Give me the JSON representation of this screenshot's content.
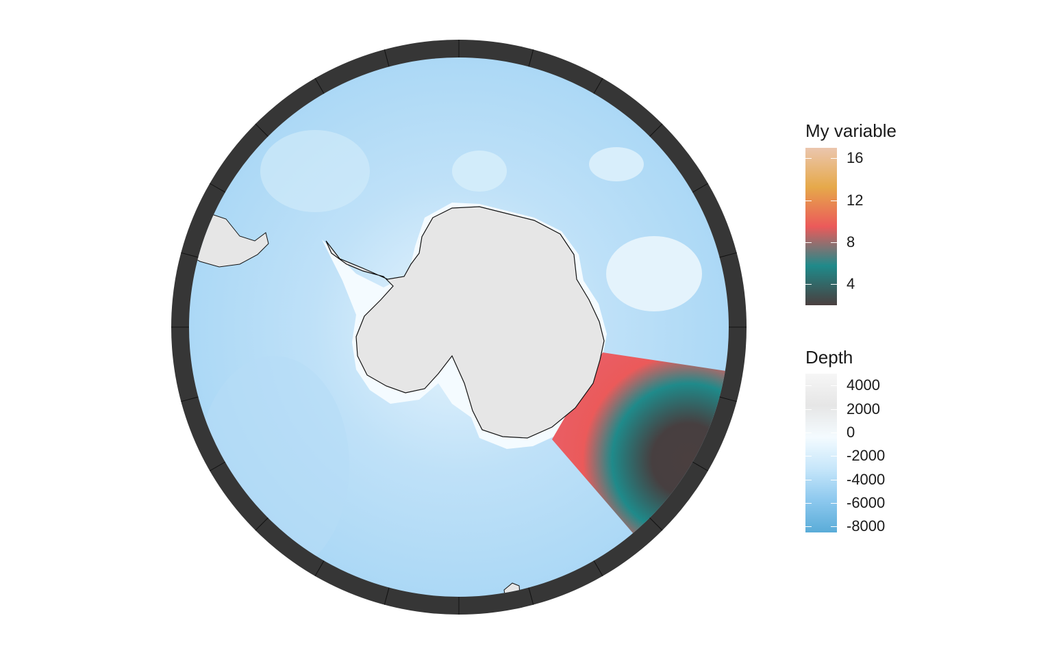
{
  "legend_variable": {
    "title": "My variable",
    "ticks": [
      "16",
      "12",
      "8",
      "4"
    ],
    "tick_values": [
      16,
      12,
      8,
      4
    ],
    "range": [
      2,
      17
    ],
    "colors": [
      "#4a3f3f",
      "#1f8a8a",
      "#eb5a5a",
      "#e6a94a",
      "#ebc6ae"
    ]
  },
  "legend_depth": {
    "title": "Depth",
    "ticks": [
      "4000",
      "2000",
      "0",
      "-2000",
      "-4000",
      "-6000",
      "-8000"
    ],
    "tick_values": [
      4000,
      2000,
      0,
      -2000,
      -4000,
      -6000,
      -8000
    ],
    "range": [
      -8500,
      5000
    ],
    "colors": [
      "#5aacd8",
      "#8cc8ee",
      "#c6e6fa",
      "#f4fbff",
      "#e6e6e6",
      "#f6f6f6"
    ]
  },
  "map": {
    "projection": "south-polar-stereographic",
    "ocean_color": "#a9d7f5",
    "land_color": "#e6e6e6",
    "frame_color": "#363636"
  }
}
